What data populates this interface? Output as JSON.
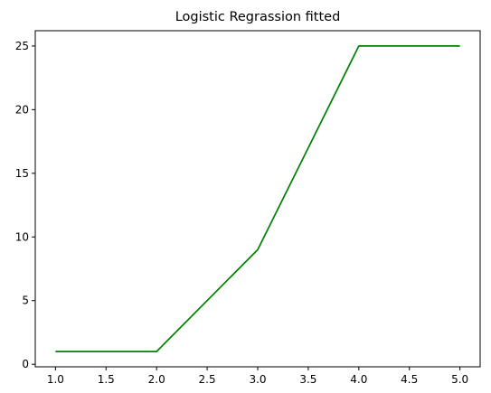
{
  "chart_data": {
    "type": "line",
    "title": "Logistic Regrassion fitted",
    "xlabel": "",
    "ylabel": "",
    "x": [
      1.0,
      2.0,
      3.0,
      4.0,
      5.0
    ],
    "series": [
      {
        "values": [
          1,
          1,
          9,
          25,
          25
        ],
        "color": "#008000"
      }
    ],
    "xlim": [
      0.8,
      5.2
    ],
    "ylim": [
      -0.2,
      26.2
    ],
    "xticks": [
      1.0,
      1.5,
      2.0,
      2.5,
      3.0,
      3.5,
      4.0,
      4.5,
      5.0
    ],
    "xtick_labels": [
      "1.0",
      "1.5",
      "2.0",
      "2.5",
      "3.0",
      "3.5",
      "4.0",
      "4.5",
      "5.0"
    ],
    "yticks": [
      0,
      5,
      10,
      15,
      20,
      25
    ],
    "ytick_labels": [
      "0",
      "5",
      "10",
      "15",
      "20",
      "25"
    ],
    "grid": false,
    "legend": "none"
  }
}
